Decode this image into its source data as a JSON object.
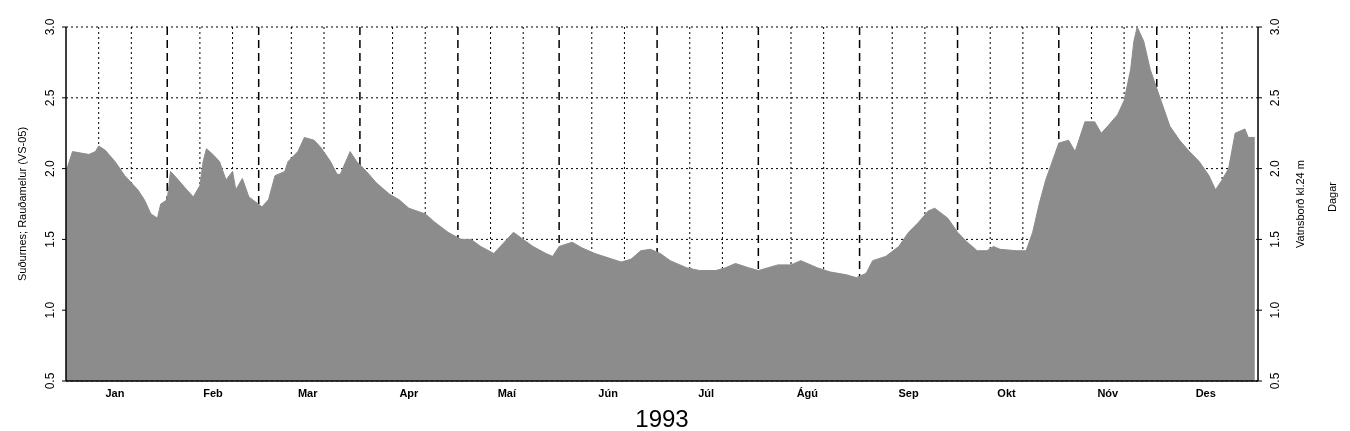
{
  "chart_data": {
    "type": "area",
    "xlabel": "1993",
    "ylabel": "Suðurnes; Rauðamelur (VS-05)",
    "y2label": "Vatnsborð kl.24 m",
    "annotations": [
      "Dagar"
    ],
    "x": [
      "1993-01-01",
      "1993-01-03",
      "1993-01-08",
      "1993-01-10",
      "1993-01-11",
      "1993-01-13",
      "1993-01-16",
      "1993-01-19",
      "1993-01-23",
      "1993-01-25",
      "1993-01-27",
      "1993-01-29",
      "1993-01-30",
      "1993-02-01",
      "1993-02-02",
      "1993-02-04",
      "1993-02-07",
      "1993-02-09",
      "1993-02-11",
      "1993-02-12",
      "1993-02-13",
      "1993-02-15",
      "1993-02-17",
      "1993-02-19",
      "1993-02-21",
      "1993-02-22",
      "1993-02-24",
      "1993-02-26",
      "1993-03-02",
      "1993-03-04",
      "1993-03-06",
      "1993-03-09",
      "1993-03-10",
      "1993-03-13",
      "1993-03-15",
      "1993-03-18",
      "1993-03-20",
      "1993-03-23",
      "1993-03-25",
      "1993-03-26",
      "1993-03-29",
      "1993-03-31",
      "1993-04-03",
      "1993-04-06",
      "1993-04-10",
      "1993-04-13",
      "1993-04-16",
      "1993-04-21",
      "1993-04-24",
      "1993-04-28",
      "1993-05-02",
      "1993-05-05",
      "1993-05-08",
      "1993-05-12",
      "1993-05-16",
      "1993-05-18",
      "1993-05-21",
      "1993-05-24",
      "1993-05-28",
      "1993-05-30",
      "1993-06-01",
      "1993-06-05",
      "1993-06-08",
      "1993-06-12",
      "1993-06-16",
      "1993-06-20",
      "1993-06-23",
      "1993-06-26",
      "1993-06-29",
      "1993-07-02",
      "1993-07-05",
      "1993-07-10",
      "1993-07-14",
      "1993-07-19",
      "1993-07-22",
      "1993-07-25",
      "1993-07-29",
      "1993-08-01",
      "1993-08-04",
      "1993-08-07",
      "1993-08-11",
      "1993-08-14",
      "1993-08-19",
      "1993-08-23",
      "1993-08-28",
      "1993-08-31",
      "1993-09-03",
      "1993-09-05",
      "1993-09-09",
      "1993-09-13",
      "1993-09-16",
      "1993-09-19",
      "1993-09-22",
      "1993-09-24",
      "1993-09-28",
      "1993-10-01",
      "1993-10-04",
      "1993-10-07",
      "1993-10-10",
      "1993-10-12",
      "1993-10-14",
      "1993-10-19",
      "1993-10-22",
      "1993-10-24",
      "1993-10-26",
      "1993-10-28",
      "1993-10-30",
      "1993-11-01",
      "1993-11-04",
      "1993-11-06",
      "1993-11-09",
      "1993-11-12",
      "1993-11-14",
      "1993-11-16",
      "1993-11-19",
      "1993-11-21",
      "1993-11-23",
      "1993-11-24",
      "1993-11-25",
      "1993-11-27",
      "1993-11-29",
      "1993-12-02",
      "1993-12-05",
      "1993-12-08",
      "1993-12-11",
      "1993-12-14",
      "1993-12-17",
      "1993-12-19",
      "1993-12-21",
      "1993-12-23",
      "1993-12-25",
      "1993-12-28",
      "1993-12-29",
      "1993-12-31"
    ],
    "series": [
      {
        "color": "#8c8c8c",
        "values": [
          1.98,
          2.12,
          2.1,
          2.12,
          2.16,
          2.13,
          2.05,
          1.95,
          1.85,
          1.78,
          1.68,
          1.65,
          1.75,
          1.78,
          1.98,
          1.93,
          1.85,
          1.8,
          1.88,
          2.05,
          2.14,
          2.1,
          2.05,
          1.92,
          1.98,
          1.85,
          1.93,
          1.8,
          1.73,
          1.78,
          1.95,
          1.98,
          2.05,
          2.12,
          2.22,
          2.2,
          2.15,
          2.05,
          1.96,
          1.96,
          2.12,
          2.05,
          1.98,
          1.9,
          1.82,
          1.78,
          1.72,
          1.68,
          1.62,
          1.55,
          1.5,
          1.5,
          1.45,
          1.4,
          1.5,
          1.55,
          1.5,
          1.45,
          1.4,
          1.38,
          1.45,
          1.48,
          1.44,
          1.4,
          1.37,
          1.34,
          1.36,
          1.42,
          1.43,
          1.4,
          1.35,
          1.3,
          1.28,
          1.28,
          1.3,
          1.33,
          1.3,
          1.28,
          1.3,
          1.32,
          1.32,
          1.35,
          1.3,
          1.27,
          1.25,
          1.23,
          1.26,
          1.35,
          1.38,
          1.45,
          1.55,
          1.62,
          1.7,
          1.72,
          1.65,
          1.55,
          1.48,
          1.42,
          1.42,
          1.45,
          1.43,
          1.42,
          1.42,
          1.55,
          1.75,
          1.92,
          2.05,
          2.18,
          2.2,
          2.12,
          2.33,
          2.33,
          2.25,
          2.3,
          2.38,
          2.48,
          2.7,
          2.9,
          3.0,
          2.9,
          2.7,
          2.5,
          2.3,
          2.2,
          2.12,
          2.05,
          1.95,
          1.85,
          1.92,
          2.0,
          2.25,
          2.28,
          2.22,
          2.22
        ]
      }
    ],
    "xlim": [
      "1993-01-01",
      "1994-01-01"
    ],
    "xticks": [
      {
        "value": "1993-01-11",
        "label": null
      },
      {
        "value": "1993-01-16",
        "label": "Jan"
      },
      {
        "value": "1993-01-21",
        "label": null
      },
      {
        "value": "1993-02-11",
        "label": null
      },
      {
        "value": "1993-02-15",
        "label": "Feb"
      },
      {
        "value": "1993-02-21",
        "label": null
      },
      {
        "value": "1993-03-11",
        "label": null
      },
      {
        "value": "1993-03-16",
        "label": "Mar"
      },
      {
        "value": "1993-03-21",
        "label": null
      },
      {
        "value": "1993-04-11",
        "label": null
      },
      {
        "value": "1993-04-16",
        "label": "Apr"
      },
      {
        "value": "1993-04-21",
        "label": null
      },
      {
        "value": "1993-05-11",
        "label": null
      },
      {
        "value": "1993-05-16",
        "label": "Maí"
      },
      {
        "value": "1993-05-21",
        "label": null
      },
      {
        "value": "1993-06-11",
        "label": null
      },
      {
        "value": "1993-06-16",
        "label": "Jún"
      },
      {
        "value": "1993-06-21",
        "label": null
      },
      {
        "value": "1993-07-11",
        "label": null
      },
      {
        "value": "1993-07-16",
        "label": "Júl"
      },
      {
        "value": "1993-07-21",
        "label": null
      },
      {
        "value": "1993-08-11",
        "label": null
      },
      {
        "value": "1993-08-16",
        "label": "Ágú"
      },
      {
        "value": "1993-08-21",
        "label": null
      },
      {
        "value": "1993-09-11",
        "label": null
      },
      {
        "value": "1993-09-16",
        "label": "Sep"
      },
      {
        "value": "1993-09-21",
        "label": null
      },
      {
        "value": "1993-10-11",
        "label": null
      },
      {
        "value": "1993-10-16",
        "label": "Okt"
      },
      {
        "value": "1993-10-21",
        "label": null
      },
      {
        "value": "1993-11-11",
        "label": null
      },
      {
        "value": "1993-11-16",
        "label": "Nóv"
      },
      {
        "value": "1993-11-21",
        "label": null
      },
      {
        "value": "1993-12-11",
        "label": null
      },
      {
        "value": "1993-12-16",
        "label": "Des"
      },
      {
        "value": "1993-12-21",
        "label": null
      }
    ],
    "ylim": [
      0.5,
      3.0
    ],
    "yticks": [
      0.5,
      {
        "value": 1,
        "label": "1.0"
      },
      1.5,
      {
        "value": 2,
        "label": "2.0"
      },
      2.5,
      {
        "value": 3,
        "label": "3.0"
      }
    ],
    "y2lim": [
      0.5,
      3.0
    ],
    "y2ticks": [
      0.5,
      {
        "value": 1,
        "label": "1.0"
      },
      1.5,
      {
        "value": 2,
        "label": "2.0"
      },
      2.5,
      {
        "value": 3,
        "label": "3.0"
      }
    ],
    "grid": true,
    "ref_lines": [
      {
        "axis": "x",
        "value": "1993-02-01",
        "line_style": "dashed"
      },
      {
        "axis": "x",
        "value": "1993-03-01",
        "line_style": "dashed"
      },
      {
        "axis": "x",
        "value": "1993-04-01",
        "line_style": "dashed"
      },
      {
        "axis": "x",
        "value": "1993-05-01",
        "line_style": "dashed"
      },
      {
        "axis": "x",
        "value": "1993-06-01",
        "line_style": "dashed"
      },
      {
        "axis": "x",
        "value": "1993-07-01",
        "line_style": "dashed"
      },
      {
        "axis": "x",
        "value": "1993-08-01",
        "line_style": "dashed"
      },
      {
        "axis": "x",
        "value": "1993-09-01",
        "line_style": "dashed"
      },
      {
        "axis": "x",
        "value": "1993-10-01",
        "line_style": "dashed"
      },
      {
        "axis": "x",
        "value": "1993-11-01",
        "line_style": "dashed"
      },
      {
        "axis": "x",
        "value": "1993-12-01",
        "line_style": "dashed"
      }
    ]
  }
}
